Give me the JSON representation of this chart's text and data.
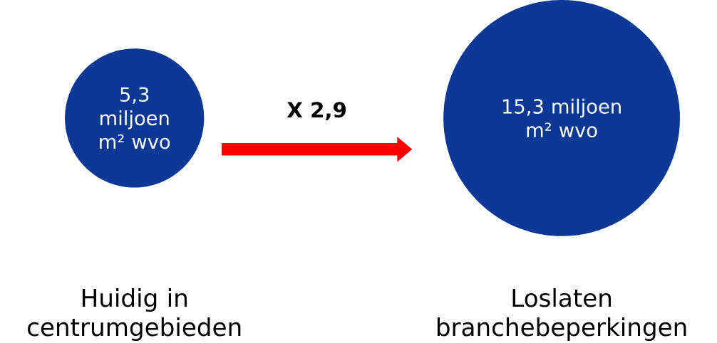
{
  "chart_data": {
    "type": "other",
    "categories": [
      "Huidig in centrumgebieden",
      "Loslaten branchebeperkingen"
    ],
    "values": [
      5.3,
      15.3
    ],
    "value_labels": [
      "5,3 miljoen m² wvo",
      "15,3 miljoen m² wvo"
    ],
    "colors": [
      "#0d3895",
      "#0d3895"
    ],
    "annotations": [
      "X 2,9"
    ]
  }
}
